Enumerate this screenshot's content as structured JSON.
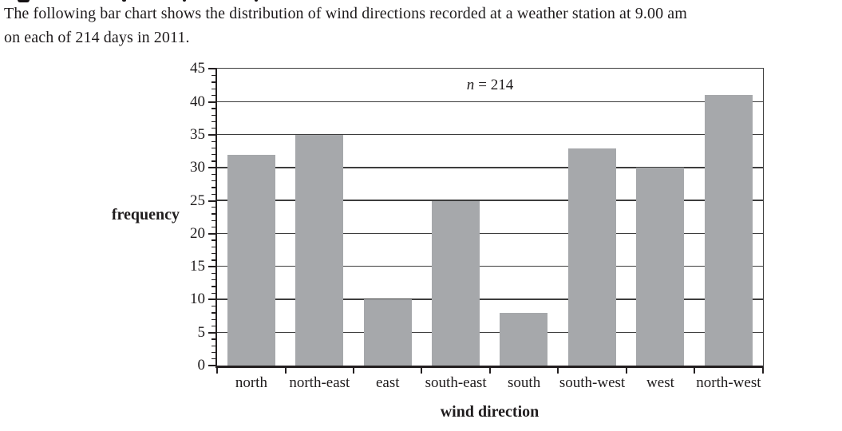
{
  "intro": {
    "line1": "The following bar chart shows the distribution of wind directions recorded at a weather station at 9.00 am",
    "line2": "on each of 214 days in 2011."
  },
  "chart_data": {
    "type": "bar",
    "title": "",
    "annotation": {
      "italic_part": "n",
      "rest": "= 214"
    },
    "xlabel": "wind direction",
    "ylabel": "frequency",
    "categories": [
      "north",
      "north-east",
      "east",
      "south-east",
      "south",
      "south-west",
      "west",
      "north-west"
    ],
    "values": [
      32,
      35,
      10,
      25,
      8,
      33,
      30,
      41
    ],
    "n_total": 214,
    "ylim": [
      0,
      45
    ],
    "y_major_step": 5,
    "y_minor_step": 1,
    "grid": true,
    "legend": "none",
    "colors": {
      "bar_fill": "#a6a8ab",
      "axis": "#231f20",
      "grid": "#3d3d3d",
      "text": "#1f1c1d"
    }
  }
}
